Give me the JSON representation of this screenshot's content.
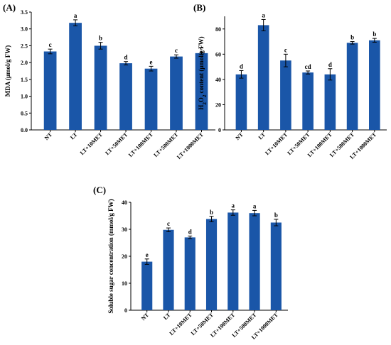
{
  "colors": {
    "bar": "#1a56a8",
    "axis": "#000000"
  },
  "chart_data": [
    {
      "panel": "(A)",
      "type": "bar",
      "ylabel": "MDA (μmol/g FW)",
      "ylim": [
        0,
        3.5
      ],
      "yticks": [
        "0.0",
        "0.5",
        "1.0",
        "1.5",
        "2.0",
        "2.5",
        "3.0",
        "3.5"
      ],
      "categories": [
        "NT",
        "LT",
        "LT+10MET",
        "LT+50MET",
        "LT+100MET",
        "LT+500MET",
        "LT+1000MET"
      ],
      "values": [
        2.33,
        3.18,
        2.5,
        1.98,
        1.82,
        2.18,
        2.28
      ],
      "errors": [
        0.07,
        0.09,
        0.1,
        0.05,
        0.07,
        0.05,
        0.03
      ],
      "letters": [
        "c",
        "a",
        "b",
        "d",
        "e",
        "c",
        "c"
      ]
    },
    {
      "panel": "(B)",
      "type": "bar",
      "ylabel": "H2O2 content (μmol/g FW)",
      "ylim": [
        0,
        90
      ],
      "yticks": [
        "0",
        "20",
        "40",
        "60",
        "80"
      ],
      "categories": [
        "NT",
        "LT",
        "LT+10MET",
        "LT+50MET",
        "LT+100MET",
        "LT+500MET",
        "LT+1000MET"
      ],
      "values": [
        44,
        83,
        55,
        45.5,
        44,
        69,
        71
      ],
      "errors": [
        3,
        4.5,
        5,
        1.2,
        4.5,
        1,
        1.5
      ],
      "letters": [
        "d",
        "a",
        "c",
        "cd",
        "d",
        "b",
        "b"
      ]
    },
    {
      "panel": "(C)",
      "type": "bar",
      "ylabel": "Soluble sugar concentration (mmol/g FW)",
      "ylim": [
        0,
        40
      ],
      "yticks": [
        "0",
        "10",
        "20",
        "30",
        "40"
      ],
      "categories": [
        "NT",
        "LT",
        "LT+10MET",
        "LT+50MET",
        "LT+100MET",
        "LT+500MET",
        "LT+1000MET"
      ],
      "values": [
        18,
        29.8,
        27,
        33.8,
        36.2,
        36,
        32.5
      ],
      "errors": [
        1,
        0.7,
        0.5,
        1,
        1,
        1,
        1.2
      ],
      "letters": [
        "e",
        "c",
        "d",
        "b",
        "a",
        "a",
        "b"
      ]
    }
  ]
}
